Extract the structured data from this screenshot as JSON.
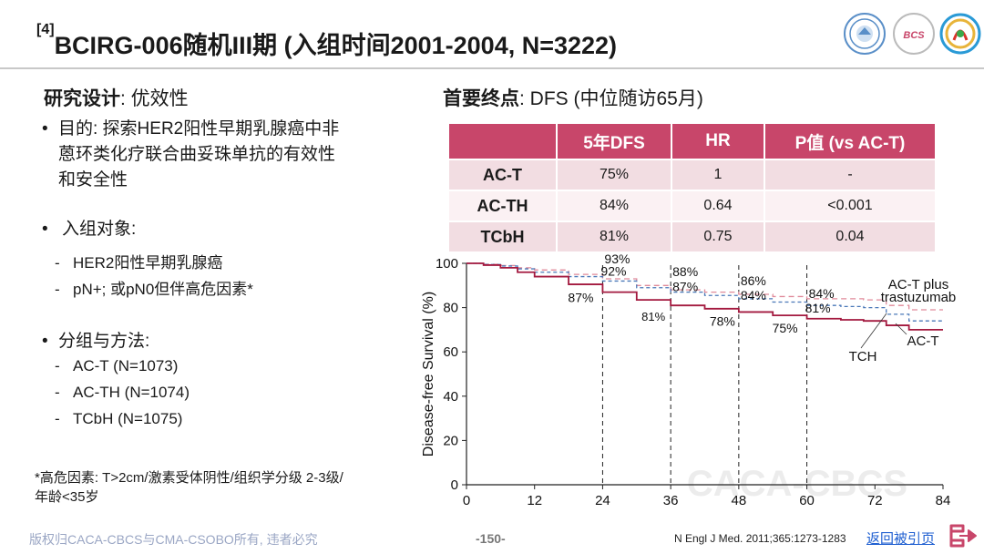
{
  "title": {
    "ref": "[4]",
    "text": "BCIRG-006随机III期 (入组时间2001-2004, N=3222)"
  },
  "left": {
    "design_heading_bold": "研究设计",
    "design_heading_rest": ": 优效性",
    "purpose_line1": "目的: 探索HER2阳性早期乳腺癌中非",
    "purpose_line2": "蒽环类化疗联合曲妥珠单抗的有效性",
    "purpose_line3": "和安全性",
    "population_label": "入组对象:",
    "population_items": [
      "HER2阳性早期乳腺癌",
      "pN+; 或pN0但伴高危因素*"
    ],
    "groups_label": "分组与方法:",
    "group_items": [
      "AC-T (N=1073)",
      "AC-TH (N=1074)",
      "TCbH (N=1075)"
    ],
    "footnote_line1": "*高危因素: T>2cm/激素受体阴性/组织学分级 2-3级/",
    "footnote_line2": "年龄<35岁"
  },
  "right": {
    "endpoint_bold": "首要终点",
    "endpoint_rest": ": DFS (中位随访65月)",
    "table": {
      "headers": [
        "",
        "5年DFS",
        "HR",
        "P值 (vs AC-T)"
      ],
      "rows": [
        [
          "AC-T",
          "75%",
          "1",
          "-"
        ],
        [
          "AC-TH",
          "84%",
          "0.64",
          "<0.001"
        ],
        [
          "TCbH",
          "81%",
          "0.75",
          "0.04"
        ]
      ]
    }
  },
  "chart_data": {
    "type": "line",
    "ylabel": "Disease-free Survival (%)",
    "xlabel": "",
    "xlim": [
      0,
      84
    ],
    "ylim": [
      0,
      100
    ],
    "xticks": [
      0,
      12,
      24,
      36,
      48,
      60,
      72,
      84
    ],
    "yticks": [
      0,
      20,
      40,
      60,
      80,
      100
    ],
    "vlines": [
      24,
      36,
      48,
      60
    ],
    "watermark": "CACA-CBCS",
    "series": [
      {
        "name": "AC-T plus trastuzumab",
        "color": "#e08a9a",
        "dash": "6,4",
        "x": [
          0,
          3,
          6,
          9,
          12,
          18,
          24,
          30,
          36,
          42,
          48,
          54,
          60,
          66,
          70,
          74,
          78,
          82,
          84
        ],
        "y": [
          100,
          99.6,
          99,
          98,
          97,
          95,
          93,
          90,
          88,
          87,
          86,
          85,
          84,
          84,
          83.5,
          81,
          79,
          79,
          79
        ]
      },
      {
        "name": "TCH",
        "color": "#4a78b8",
        "dash": "4,3",
        "x": [
          0,
          3,
          6,
          9,
          12,
          18,
          24,
          30,
          36,
          42,
          48,
          54,
          60,
          66,
          70,
          74,
          78,
          82,
          84
        ],
        "y": [
          100,
          99.5,
          98.8,
          97.5,
          96,
          94,
          92,
          89,
          87,
          85.5,
          84,
          82.5,
          81,
          80.5,
          80,
          77,
          74,
          74,
          74
        ]
      },
      {
        "name": "AC-T",
        "color": "#a3193f",
        "dash": "",
        "x": [
          0,
          3,
          6,
          9,
          12,
          18,
          24,
          30,
          36,
          42,
          48,
          54,
          60,
          66,
          70,
          74,
          78,
          82,
          84
        ],
        "y": [
          100,
          99.2,
          98,
          96,
          94,
          90.5,
          87,
          83.5,
          81,
          79.5,
          78,
          76.5,
          75,
          74.5,
          74,
          72,
          70,
          70,
          70
        ]
      }
    ],
    "point_labels": [
      {
        "text": "93%",
        "x": 24,
        "y": 93
      },
      {
        "text": "92%",
        "x": 24,
        "y": 92
      },
      {
        "text": "87%",
        "x": 24,
        "y": 87
      },
      {
        "text": "88%",
        "x": 36,
        "y": 88
      },
      {
        "text": "87%",
        "x": 36,
        "y": 87
      },
      {
        "text": "81%",
        "x": 36,
        "y": 81
      },
      {
        "text": "86%",
        "x": 48,
        "y": 86
      },
      {
        "text": "84%",
        "x": 48,
        "y": 84
      },
      {
        "text": "78%",
        "x": 48,
        "y": 78
      },
      {
        "text": "84%",
        "x": 60,
        "y": 84
      },
      {
        "text": "81%",
        "x": 60,
        "y": 81
      },
      {
        "text": "75%",
        "x": 60,
        "y": 75
      }
    ],
    "series_labels": [
      "AC-T plus",
      "trastuzumab",
      "TCH",
      "AC-T"
    ]
  },
  "footer": {
    "copyright": "版权归CACA-CBCS与CMA-CSOBO所有, 违者必究",
    "page": "-150-",
    "reference": "N Engl J Med. 2011;365:1273-1283",
    "back_link": "返回被引页"
  },
  "colors": {
    "accent": "#c8466a",
    "act": "#a3193f",
    "tch": "#4a78b8",
    "acth": "#e08a9a",
    "link": "#1f5fd1"
  }
}
